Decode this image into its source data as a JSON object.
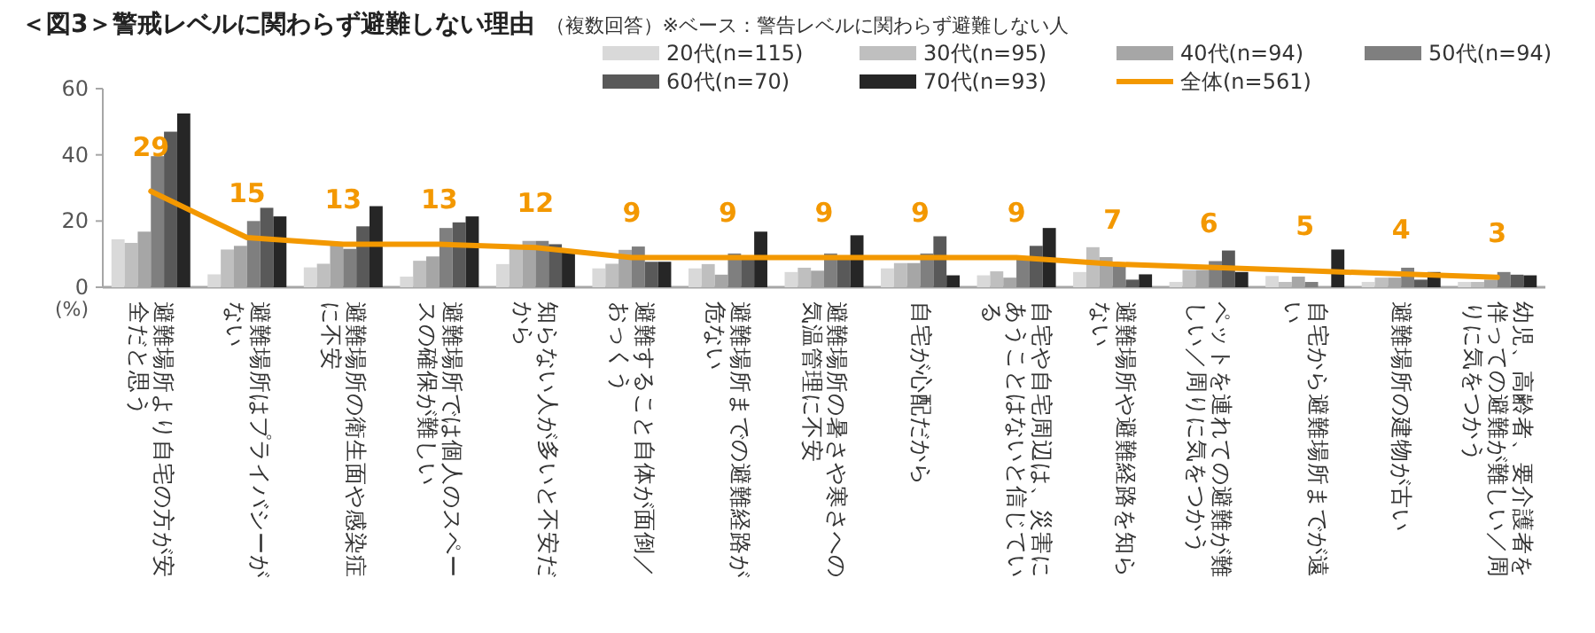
{
  "chart_data": {
    "type": "bar",
    "title": "＜図3＞警戒レベルに関わらず避難しない理由",
    "subtitle": "（複数回答）※ベース：警告レベルに関わらず避難しない人",
    "ylabel": "(%)",
    "categories": [
      "避難場所より自宅の方が安全だと思う",
      "避難場所はプライバシーがない",
      "避難場所の衛生面や感染症に不安",
      "避難場所では個人のスペースの確保が難しい",
      "知らない人が多いと不安だから",
      "避難すること自体が面倒／おっくう",
      "避難場所までの避難経路が危ない",
      "避難場所の暑さや寒さへの気温管理に不安",
      "自宅が心配だから",
      "自宅や自宅周辺は、災害にあうことはないと信じている",
      "避難場所や避難経路を知らない",
      "ペットを連れての避難が難しい／周りに気をつかう",
      "自宅から避難場所までが遠い",
      "避難場所の建物が古い",
      "幼児、高齢者、要介護者を伴っての避難が難しい／周りに気をつかう"
    ],
    "series": [
      {
        "name": "20代(n=115)",
        "color": "#d9d9d9",
        "values": [
          14.5,
          3.9,
          6,
          3.2,
          7,
          5.7,
          5.7,
          4.6,
          5.7,
          3.6,
          4.6,
          1.6,
          3.4,
          1.6,
          1.6
        ]
      },
      {
        "name": "30代(n=95)",
        "color": "#bfbfbf",
        "values": [
          13.4,
          11.4,
          7.1,
          8,
          12,
          7.1,
          7,
          5.9,
          7.3,
          4.8,
          12.1,
          5.2,
          1.6,
          2.9,
          1.6
        ]
      },
      {
        "name": "40代(n=94)",
        "color": "#a6a6a6",
        "values": [
          16.8,
          12.5,
          12.9,
          9.3,
          14,
          11.3,
          3.8,
          5,
          7.3,
          2.9,
          9.1,
          5.2,
          3.2,
          2.9,
          2.3
        ]
      },
      {
        "name": "50代(n=94)",
        "color": "#7f7f7f",
        "values": [
          39.6,
          20,
          11.6,
          17.9,
          14,
          12.3,
          10.2,
          10.2,
          10.2,
          8.9,
          6.8,
          7.9,
          1.6,
          5.9,
          4.6
        ]
      },
      {
        "name": "60代(n=70)",
        "color": "#595959",
        "values": [
          47,
          24,
          18.4,
          19.6,
          13,
          7.7,
          8.9,
          9.5,
          15.4,
          12.5,
          2.3,
          11.1,
          0,
          2.3,
          3.8
        ]
      },
      {
        "name": "70代(n=93)",
        "color": "#262626",
        "values": [
          52.5,
          21.4,
          24.5,
          21.4,
          11,
          7.7,
          16.8,
          15.7,
          3.6,
          17.9,
          3.9,
          4.6,
          11.4,
          4.6,
          3.6
        ]
      },
      {
        "name": "全体(n=561)",
        "type": "line",
        "color": "#f39800",
        "marker": "none",
        "values": [
          29,
          15,
          13,
          13,
          12,
          9,
          9,
          9,
          9,
          9,
          7,
          6,
          5,
          4,
          3
        ],
        "value_labels": [
          "29",
          "15",
          "13",
          "13",
          "12",
          "9",
          "9",
          "9",
          "9",
          "9",
          "7",
          "6",
          "5",
          "4",
          "3"
        ]
      }
    ],
    "ylim": [
      0,
      60
    ],
    "yticks": [
      0,
      20,
      40,
      60
    ],
    "grid": false,
    "legend": "top right"
  }
}
